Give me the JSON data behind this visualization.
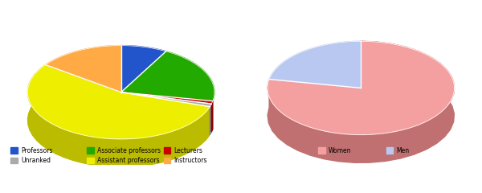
{
  "left_chart": {
    "labels": [
      "Professors",
      "Associate professors",
      "Lecturers",
      "Unranked",
      "Assistant professors",
      "Instructors"
    ],
    "values": [
      8,
      20,
      1,
      1,
      55,
      15
    ],
    "colors": [
      "#2255cc",
      "#22aa00",
      "#cc0000",
      "#aaaaaa",
      "#eeee00",
      "#ffaa44"
    ],
    "shadow_colors": [
      "#1133aa",
      "#118800",
      "#880000",
      "#888888",
      "#bbbb00",
      "#cc7722"
    ]
  },
  "right_chart": {
    "labels": [
      "Women",
      "Men"
    ],
    "values": [
      78,
      22
    ],
    "colors": [
      "#f4a0a0",
      "#b8c8f0"
    ],
    "shadow_colors": [
      "#c07070",
      "#8090b8"
    ]
  },
  "legend_left": {
    "items": [
      {
        "label": "Professors",
        "color": "#2255cc"
      },
      {
        "label": "Associate professors",
        "color": "#22aa00"
      },
      {
        "label": "Lecturers",
        "color": "#cc0000"
      },
      {
        "label": "Unranked",
        "color": "#aaaaaa"
      },
      {
        "label": "Assistant professors",
        "color": "#eeee00"
      },
      {
        "label": "Instructors",
        "color": "#ffaa44"
      }
    ]
  },
  "legend_right": {
    "items": [
      {
        "label": "Women",
        "color": "#f4a0a0"
      },
      {
        "label": "Men",
        "color": "#b8c8f0"
      }
    ]
  }
}
